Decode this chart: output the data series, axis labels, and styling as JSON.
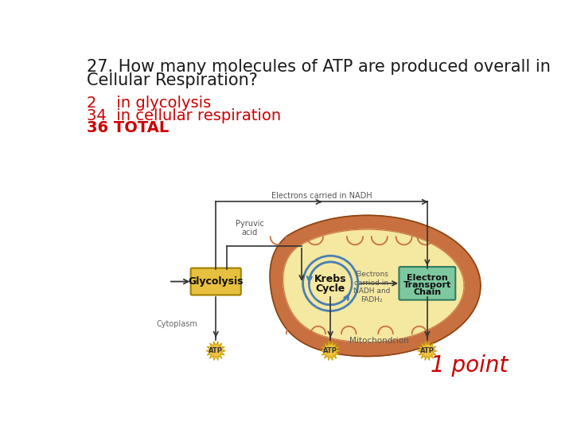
{
  "title_line1": "27. How many molecules of ATP are produced overall in",
  "title_line2": "Cellular Respiration?",
  "answer_lines": [
    {
      "text": "2    in glycolysis",
      "color": "#cc0000",
      "bold": false
    },
    {
      "text": "34  in cellular respiration",
      "color": "#cc0000",
      "bold": false
    },
    {
      "text": "36 TOTAL",
      "color": "#cc0000",
      "bold": true
    }
  ],
  "point_text": "1 point",
  "point_color": "#cc0000",
  "background_color": "#ffffff",
  "title_color": "#1a1a1a",
  "title_fontsize": 15,
  "answer_fontsize": 14,
  "point_fontsize": 20,
  "glycolysis_color": "#e8c040",
  "etc_color": "#7ec8a0",
  "mito_outer_color": "#c87040",
  "mito_inner_color": "#f5e8a0",
  "krebs_circle_color": "#4a7fb5",
  "arrow_color": "#333333"
}
